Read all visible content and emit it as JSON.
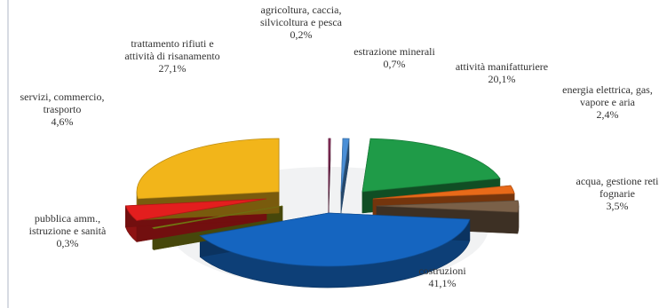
{
  "chart_data": {
    "type": "pie",
    "title": "",
    "legend": "none",
    "slices": [
      {
        "name": "agricoltura, caccia, silvicoltura e pesca",
        "label_lines": [
          "agricoltura, caccia,",
          "silvicoltura e pesca"
        ],
        "value": 0.2,
        "value_text": "0,2%",
        "color": "#8b2e5c"
      },
      {
        "name": "estrazione minerali",
        "label_lines": [
          "estrazione minerali"
        ],
        "value": 0.7,
        "value_text": "0,7%",
        "color": "#4a8fd7"
      },
      {
        "name": "attività manifatturiere",
        "label_lines": [
          "attività manifatturiere"
        ],
        "value": 20.1,
        "value_text": "20,1%",
        "color": "#1f9b48"
      },
      {
        "name": "energia elettrica, gas, vapore e aria",
        "label_lines": [
          "energia elettrica, gas,",
          "vapore e aria"
        ],
        "value": 2.4,
        "value_text": "2,4%",
        "color": "#e86a19"
      },
      {
        "name": "acqua, gestione reti fognarie",
        "label_lines": [
          "acqua, gestione reti",
          "fognarie"
        ],
        "value": 3.5,
        "value_text": "3,5%",
        "color": "#7a6048"
      },
      {
        "name": "costruzioni",
        "label_lines": [
          "costruzioni"
        ],
        "value": 41.1,
        "value_text": "41,1%",
        "color": "#1565c0"
      },
      {
        "name": "pubblica amm., istruzione e sanità",
        "label_lines": [
          "pubblica amm.,",
          "istruzione e sanità"
        ],
        "value": 0.3,
        "value_text": "0,3%",
        "color": "#8b8e16"
      },
      {
        "name": "servizi, commercio, trasporto",
        "label_lines": [
          "servizi, commercio,",
          "trasporto"
        ],
        "value": 4.6,
        "value_text": "4,6%",
        "color": "#e31e1e"
      },
      {
        "name": "trattamento rifiuti e attività di risanamento",
        "label_lines": [
          "trattamento rifiuti e",
          "attività di risanamento"
        ],
        "value": 27.1,
        "value_text": "27,1%",
        "color": "#f2b51a"
      }
    ]
  }
}
